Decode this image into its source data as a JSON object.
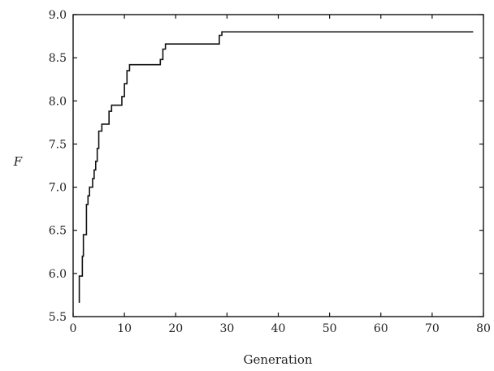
{
  "chart_data": {
    "type": "line",
    "line_style": "step",
    "title": "",
    "xlabel": "Generation",
    "ylabel": "F",
    "xlim": [
      0,
      80
    ],
    "ylim": [
      5.5,
      9.0
    ],
    "xticks": [
      0,
      10,
      20,
      30,
      40,
      50,
      60,
      70,
      80
    ],
    "yticks": [
      5.5,
      6.0,
      6.5,
      7.0,
      7.5,
      8.0,
      8.5,
      9.0
    ],
    "xtick_labels": [
      "0",
      "10",
      "20",
      "30",
      "40",
      "50",
      "60",
      "70",
      "80"
    ],
    "ytick_labels": [
      "5.5",
      "6.0",
      "6.5",
      "7.0",
      "7.5",
      "8.0",
      "8.5",
      "9.0"
    ],
    "grid": false,
    "line_color": "#111111",
    "series": [
      {
        "x": [
          1.2,
          1.2,
          1.5,
          1.8,
          2.0,
          2.3,
          2.6,
          2.9,
          3.2,
          3.5,
          3.8,
          4.1,
          4.4,
          4.7,
          5.0,
          5.3,
          5.6,
          6.0,
          6.5,
          7.0,
          7.5,
          8.0,
          9.0,
          9.5,
          10.0,
          10.5,
          11.0,
          16.5,
          17.0,
          17.5,
          18.0,
          28.0,
          28.5,
          29.0,
          78.0
        ],
        "y": [
          5.66,
          5.97,
          5.97,
          6.2,
          6.45,
          6.45,
          6.8,
          6.9,
          7.0,
          7.0,
          7.1,
          7.2,
          7.3,
          7.45,
          7.65,
          7.65,
          7.73,
          7.73,
          7.73,
          7.88,
          7.95,
          7.95,
          7.95,
          8.05,
          8.2,
          8.35,
          8.42,
          8.42,
          8.48,
          8.6,
          8.66,
          8.66,
          8.76,
          8.8,
          8.8
        ]
      }
    ]
  }
}
